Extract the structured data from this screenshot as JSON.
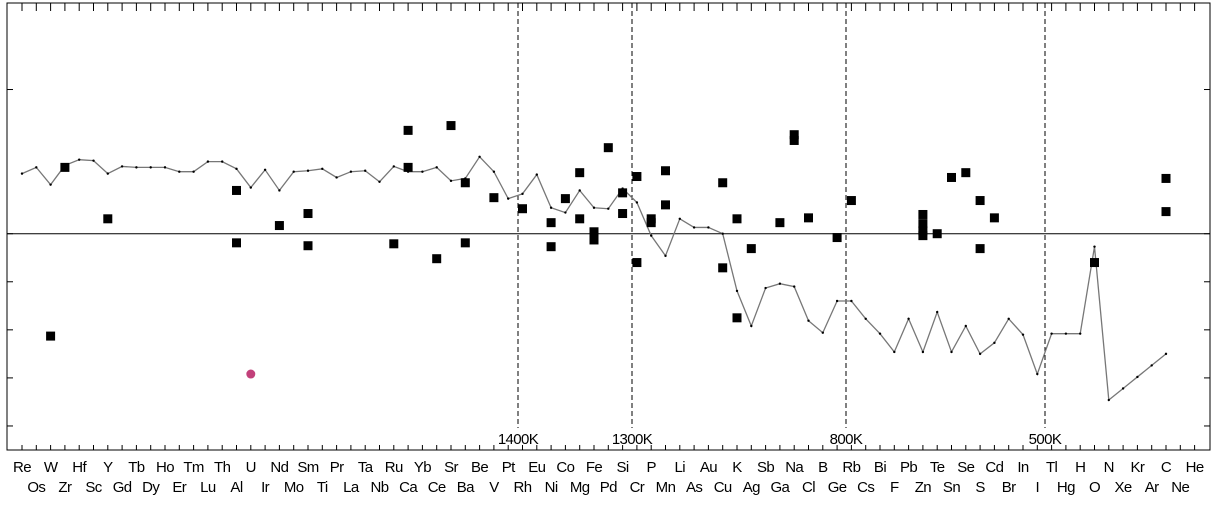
{
  "chart_data": {
    "type": "line",
    "categories": [
      "Re",
      "Os",
      "W",
      "Zr",
      "Hf",
      "Sc",
      "Y",
      "Gd",
      "Tb",
      "Dy",
      "Ho",
      "Er",
      "Tm",
      "Lu",
      "Th",
      "Al",
      "U",
      "Ir",
      "Nd",
      "Mo",
      "Sm",
      "Ti",
      "Pr",
      "La",
      "Ta",
      "Nb",
      "Ru",
      "Ca",
      "Yb",
      "Ce",
      "Sr",
      "Ba",
      "Be",
      "V",
      "Pt",
      "Rh",
      "Eu",
      "Ni",
      "Co",
      "Mg",
      "Fe",
      "Pd",
      "Si",
      "Cr",
      "P",
      "Mn",
      "Li",
      "As",
      "Au",
      "Cu",
      "K",
      "Ag",
      "Sb",
      "Ga",
      "Na",
      "Cl",
      "B",
      "Ge",
      "Rb",
      "Cs",
      "Bi",
      "F",
      "Pb",
      "Zn",
      "Te",
      "Sn",
      "Se",
      "S",
      "Cd",
      "Br",
      "In",
      "I",
      "Tl",
      "Hg",
      "H",
      "O",
      "N",
      "Xe",
      "Kr",
      "Ar",
      "C",
      "Ne",
      "He"
    ],
    "series": [
      {
        "color": "#777777",
        "marker": "line",
        "values": [
          1.25,
          1.38,
          1.02,
          1.42,
          1.54,
          1.52,
          1.25,
          1.4,
          1.38,
          1.38,
          1.38,
          1.29,
          1.29,
          1.5,
          1.5,
          1.35,
          0.96,
          1.33,
          0.9,
          1.29,
          1.31,
          1.35,
          1.17,
          1.29,
          1.31,
          1.08,
          1.4,
          1.29,
          1.29,
          1.38,
          1.1,
          1.15,
          1.6,
          1.29,
          0.73,
          0.83,
          1.23,
          0.54,
          0.44,
          0.9,
          0.54,
          0.52,
          0.94,
          0.65,
          -0.04,
          -0.46,
          0.31,
          0.13,
          0.13,
          0,
          -1.19,
          -1.92,
          -1.13,
          -1.04,
          -1.1,
          -1.81,
          -2.06,
          -1.4,
          -1.4,
          -1.77,
          -2.08,
          -2.46,
          -1.77,
          -2.46,
          -1.63,
          -2.46,
          -1.92,
          -2.5,
          -2.27,
          -1.77,
          -2.1,
          -2.92,
          -2.08,
          -2.08,
          -2.08,
          -0.27,
          -3.46,
          -3.22,
          -2.98,
          -2.74,
          -2.5,
          null,
          null
        ]
      },
      {
        "color": "#000000",
        "marker": "square",
        "x": [
          "W",
          "Zr",
          "Y",
          "Al",
          "Al",
          "Nd",
          "Sm",
          "Sm",
          "Ru",
          "Ca",
          "Ca",
          "Ce",
          "Sr",
          "Ba",
          "Ba",
          "V",
          "Rh",
          "Ni",
          "Ni",
          "Co",
          "Mg",
          "Mg",
          "Fe",
          "Fe",
          "Pd",
          "Si",
          "Si",
          "Cr",
          "Cr",
          "P",
          "P",
          "Mn",
          "Mn",
          "Cu",
          "Cu",
          "K",
          "K",
          "Ag",
          "Ga",
          "Na",
          "Na",
          "Cl",
          "Ge",
          "Rb",
          "Zn",
          "Zn",
          "Zn",
          "Zn",
          "Te",
          "Sn",
          "Se",
          "S",
          "S",
          "Cd",
          "O",
          "C",
          "C"
        ],
        "values": [
          -2.13,
          1.38,
          0.31,
          0.9,
          -0.19,
          0.17,
          0.42,
          -0.25,
          -0.21,
          2.15,
          1.38,
          -0.52,
          2.25,
          1.06,
          -0.19,
          0.75,
          0.52,
          0.23,
          -0.27,
          0.73,
          1.27,
          0.31,
          0.04,
          -0.13,
          1.79,
          0.85,
          0.42,
          1.19,
          -0.6,
          0.31,
          0.23,
          1.31,
          0.6,
          1.06,
          -0.71,
          0.31,
          -1.75,
          -0.31,
          0.23,
          2.06,
          1.94,
          0.33,
          -0.08,
          0.69,
          0.4,
          0.21,
          0.06,
          -0.04,
          0,
          1.17,
          1.27,
          0.69,
          -0.31,
          0.33,
          -0.6,
          1.15,
          0.46
        ]
      },
      {
        "color": "#c2407a",
        "marker": "circle",
        "x": [
          "U"
        ],
        "values": [
          -2.92
        ]
      }
    ],
    "annotations": [
      "1400K",
      "1300K",
      "800K",
      "500K"
    ],
    "ylim": [
      -4.5,
      4.8
    ],
    "yticks": [
      -4,
      -3,
      -2,
      -1,
      0,
      3
    ]
  }
}
